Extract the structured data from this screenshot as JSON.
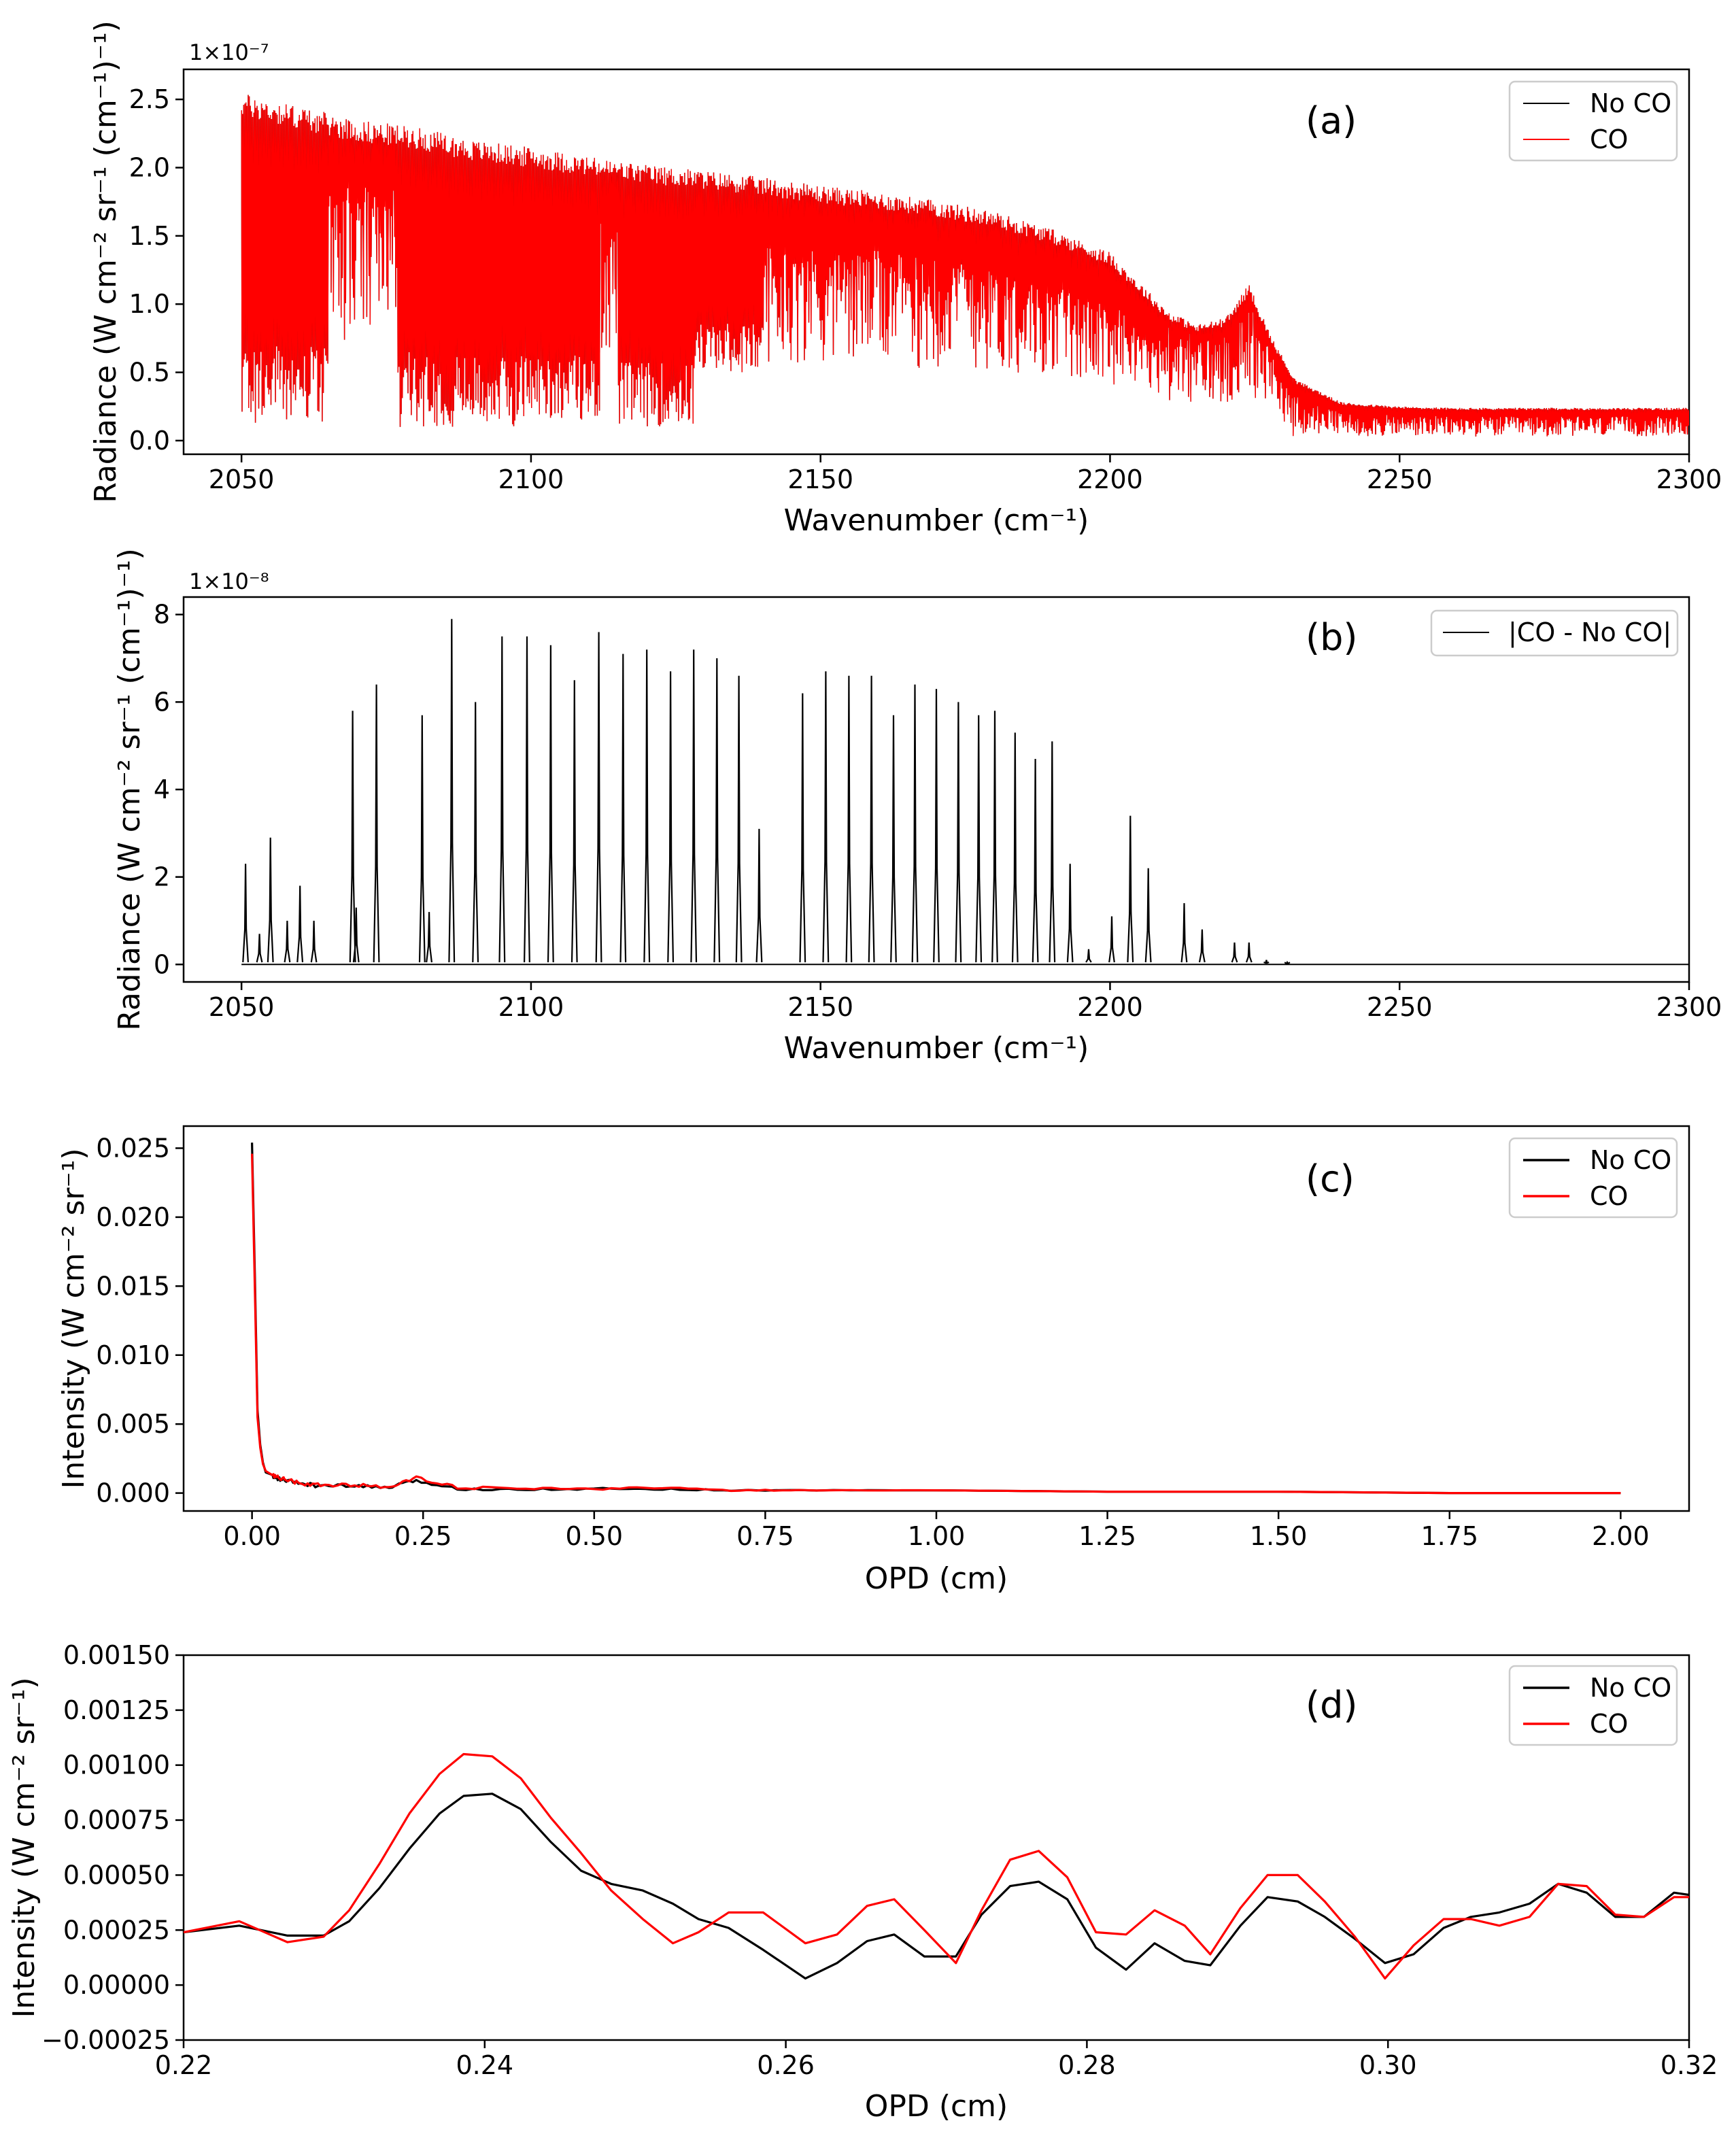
{
  "figure": {
    "panels": [
      "a",
      "b",
      "c",
      "d"
    ]
  },
  "chart_data": [
    {
      "id": "a",
      "type": "line",
      "panel_label": "(a)",
      "xlabel": "Wavenumber (cm⁻¹)",
      "ylabel": "Radiance (W cm⁻² sr⁻¹ (cm⁻¹)⁻¹)",
      "multiplier": "1×10⁻⁷",
      "xlim": [
        2040,
        2300
      ],
      "ylim": [
        -0.1,
        2.72
      ],
      "xticks": [
        2050,
        2100,
        2150,
        2200,
        2250,
        2300
      ],
      "xtick_labels": [
        "2050",
        "2100",
        "2150",
        "2200",
        "2250",
        "2300"
      ],
      "yticks": [
        0.0,
        0.5,
        1.0,
        1.5,
        2.0,
        2.5
      ],
      "ytick_labels": [
        "0.0",
        "0.5",
        "1.0",
        "1.5",
        "2.0",
        "2.5"
      ],
      "legend": [
        "No CO",
        "CO"
      ],
      "legend_position": "top-right",
      "series": [
        {
          "name": "No CO",
          "color": "#000000",
          "x_range": [
            2050,
            2300
          ],
          "envelope": {
            "x": [
              2050,
              2060,
              2070,
              2080,
              2090,
              2100,
              2110,
              2120,
              2130,
              2140,
              2150,
              2160,
              2170,
              2180,
              2190,
              2200,
              2210,
              2215,
              2220,
              2224,
              2228,
              2232,
              2240,
              2250,
              2260,
              2270,
              2280,
              2290,
              2300
            ],
            "y": [
              2.55,
              2.45,
              2.35,
              2.3,
              2.2,
              2.15,
              2.08,
              2.02,
              1.98,
              1.93,
              1.87,
              1.82,
              1.76,
              1.68,
              1.55,
              1.38,
              0.95,
              0.85,
              0.9,
              1.15,
              0.75,
              0.45,
              0.28,
              0.25,
              0.24,
              0.24,
              0.24,
              0.24,
              0.24
            ]
          },
          "baseline": 0.03
        },
        {
          "name": "CO",
          "color": "#ff0000",
          "x_range": [
            2050,
            2300
          ]
        }
      ],
      "absorption_bands": [
        {
          "x": [
            2050,
            2065
          ],
          "floor": 0.12
        },
        {
          "x": [
            2077,
            2098
          ],
          "floor": 0.1
        },
        {
          "x": [
            2098,
            2112
          ],
          "floor": 0.15
        },
        {
          "x": [
            2115,
            2128
          ],
          "floor": 0.1
        },
        {
          "x": [
            2128,
            2140
          ],
          "floor": 0.5
        }
      ]
    },
    {
      "id": "b",
      "type": "line",
      "panel_label": "(b)",
      "xlabel": "Wavenumber (cm⁻¹)",
      "ylabel": "Radiance (W cm⁻² sr⁻¹ (cm⁻¹)⁻¹)",
      "multiplier": "1×10⁻⁸",
      "xlim": [
        2040,
        2300
      ],
      "ylim": [
        -0.4,
        8.4
      ],
      "xticks": [
        2050,
        2100,
        2150,
        2200,
        2250,
        2300
      ],
      "xtick_labels": [
        "2050",
        "2100",
        "2150",
        "2200",
        "2250",
        "2300"
      ],
      "yticks": [
        0,
        2,
        4,
        6,
        8
      ],
      "ytick_labels": [
        "0",
        "2",
        "4",
        "6",
        "8"
      ],
      "legend": [
        "|CO - No CO|"
      ],
      "legend_position": "top-right",
      "series": [
        {
          "name": "|CO - No CO|",
          "color": "#000000",
          "peaks_x": [
            2050.7,
            2053.1,
            2055.0,
            2057.9,
            2060.1,
            2062.5,
            2069.2,
            2069.8,
            2073.3,
            2081.2,
            2082.4,
            2086.3,
            2090.4,
            2095.0,
            2099.3,
            2103.4,
            2107.5,
            2111.7,
            2115.9,
            2120.0,
            2124.1,
            2128.1,
            2132.1,
            2135.9,
            2139.4,
            2146.9,
            2150.9,
            2154.9,
            2158.8,
            2162.6,
            2166.3,
            2170.0,
            2173.8,
            2177.3,
            2180.1,
            2183.6,
            2187.1,
            2190.0,
            2193.1,
            2196.3,
            2200.3,
            2203.5,
            2206.6,
            2212.8,
            2215.9,
            2221.5,
            2224.0,
            2227.0,
            2230.6
          ],
          "peaks_y": [
            2.3,
            0.7,
            2.9,
            1.0,
            1.8,
            1.0,
            5.8,
            1.3,
            6.4,
            5.7,
            1.2,
            7.9,
            6.0,
            7.5,
            7.5,
            7.3,
            6.5,
            7.6,
            7.1,
            7.2,
            6.7,
            7.2,
            7.0,
            6.6,
            3.1,
            6.2,
            6.7,
            6.6,
            6.6,
            5.7,
            6.4,
            6.3,
            6.0,
            5.7,
            5.8,
            5.3,
            4.7,
            5.1,
            2.3,
            0.35,
            1.1,
            3.4,
            2.2,
            1.4,
            0.8,
            0.5,
            0.5,
            0.1,
            0.05
          ]
        }
      ]
    },
    {
      "id": "c",
      "type": "line",
      "panel_label": "(c)",
      "xlabel": "OPD (cm)",
      "ylabel": "Intensity (W cm⁻² sr⁻¹)",
      "xlim": [
        -0.1,
        2.1
      ],
      "ylim": [
        -0.0013,
        0.0266
      ],
      "xticks": [
        0.0,
        0.25,
        0.5,
        0.75,
        1.0,
        1.25,
        1.5,
        1.75,
        2.0
      ],
      "xtick_labels": [
        "0.00",
        "0.25",
        "0.50",
        "0.75",
        "1.00",
        "1.25",
        "1.50",
        "1.75",
        "2.00"
      ],
      "yticks": [
        0.0,
        0.005,
        0.01,
        0.015,
        0.02,
        0.025
      ],
      "ytick_labels": [
        "0.000",
        "0.005",
        "0.010",
        "0.015",
        "0.020",
        "0.025"
      ],
      "legend": [
        "No CO",
        "CO"
      ],
      "legend_position": "top-right",
      "series": [
        {
          "name": "No CO",
          "color": "#000000",
          "x": [
            0.0,
            0.004,
            0.008,
            0.012,
            0.016,
            0.02,
            0.03,
            0.04,
            0.05,
            0.07,
            0.1,
            0.15,
            0.2,
            0.24,
            0.3,
            0.4,
            0.5,
            0.6,
            0.7,
            0.8,
            1.0,
            1.25,
            1.5,
            1.75,
            2.0
          ],
          "y": [
            0.0254,
            0.016,
            0.006,
            0.0035,
            0.0022,
            0.0015,
            0.0012,
            0.001,
            0.0009,
            0.0007,
            0.0005,
            0.0005,
            0.0004,
            0.0009,
            0.0003,
            0.0003,
            0.0003,
            0.0003,
            0.0002,
            0.0002,
            0.0002,
            0.0001,
            0.0001,
            0.0,
            0.0
          ]
        },
        {
          "name": "CO",
          "color": "#ff0000",
          "x": [
            0.0,
            0.004,
            0.008,
            0.012,
            0.016,
            0.02,
            0.03,
            0.04,
            0.05,
            0.07,
            0.1,
            0.15,
            0.2,
            0.24,
            0.3,
            0.4,
            0.5,
            0.6,
            0.7,
            0.8,
            1.0,
            1.25,
            1.5,
            1.75,
            2.0
          ],
          "y": [
            0.0246,
            0.015,
            0.0055,
            0.0033,
            0.0021,
            0.0016,
            0.0013,
            0.0011,
            0.001,
            0.0007,
            0.0006,
            0.0006,
            0.0004,
            0.0011,
            0.0004,
            0.0003,
            0.0003,
            0.0004,
            0.0002,
            0.0002,
            0.0002,
            0.0001,
            0.0001,
            0.0,
            0.0
          ]
        }
      ]
    },
    {
      "id": "d",
      "type": "line",
      "panel_label": "(d)",
      "xlabel": "OPD (cm)",
      "ylabel": "Intensity (W cm⁻² sr⁻¹)",
      "xlim": [
        0.22,
        0.32
      ],
      "ylim": [
        -0.00025,
        0.0015
      ],
      "xticks": [
        0.22,
        0.24,
        0.26,
        0.28,
        0.3,
        0.32
      ],
      "xtick_labels": [
        "0.22",
        "0.24",
        "0.26",
        "0.28",
        "0.30",
        "0.32"
      ],
      "yticks": [
        -0.00025,
        0.0,
        0.00025,
        0.0005,
        0.00075,
        0.001,
        0.00125,
        0.0015
      ],
      "ytick_labels": [
        "−0.00025",
        "0.00000",
        "0.00025",
        "0.00050",
        "0.00075",
        "0.00100",
        "0.00125",
        "0.00150"
      ],
      "legend": [
        "No CO",
        "CO"
      ],
      "legend_position": "top-right",
      "series": [
        {
          "name": "No CO",
          "color": "#000000",
          "x": [
            0.22,
            0.2237,
            0.2269,
            0.2293,
            0.231,
            0.233,
            0.235,
            0.237,
            0.2386,
            0.2405,
            0.2424,
            0.2444,
            0.2464,
            0.2484,
            0.2505,
            0.2525,
            0.2542,
            0.2562,
            0.2585,
            0.2613,
            0.2634,
            0.2654,
            0.2672,
            0.2692,
            0.2713,
            0.273,
            0.2749,
            0.2768,
            0.2787,
            0.2806,
            0.2826,
            0.2845,
            0.2865,
            0.2882,
            0.2902,
            0.292,
            0.294,
            0.2958,
            0.2978,
            0.2998,
            0.3017,
            0.3037,
            0.3055,
            0.3074,
            0.3094,
            0.3113,
            0.3132,
            0.3151,
            0.317,
            0.319,
            0.32
          ],
          "y": [
            0.00024,
            0.00027,
            0.000225,
            0.000225,
            0.00029,
            0.00044,
            0.00062,
            0.00078,
            0.00086,
            0.00087,
            0.0008,
            0.00065,
            0.00052,
            0.00046,
            0.00043,
            0.00037,
            0.0003,
            0.00026,
            0.00016,
            3e-05,
            0.0001,
            0.0002,
            0.00023,
            0.00013,
            0.00013,
            0.00032,
            0.00045,
            0.00047,
            0.00039,
            0.00017,
            7e-05,
            0.00019,
            0.00011,
            9e-05,
            0.00027,
            0.0004,
            0.00038,
            0.00031,
            0.00021,
            0.0001,
            0.00014,
            0.00026,
            0.00031,
            0.00033,
            0.00037,
            0.00046,
            0.00042,
            0.00031,
            0.00031,
            0.00042,
            0.00041
          ]
        },
        {
          "name": "CO",
          "color": "#ff0000",
          "x": [
            0.22,
            0.2237,
            0.2269,
            0.2293,
            0.231,
            0.233,
            0.235,
            0.237,
            0.2386,
            0.2405,
            0.2424,
            0.2444,
            0.2464,
            0.2484,
            0.2505,
            0.2525,
            0.2542,
            0.2562,
            0.2585,
            0.2613,
            0.2634,
            0.2654,
            0.2672,
            0.2692,
            0.2713,
            0.273,
            0.2749,
            0.2768,
            0.2787,
            0.2806,
            0.2826,
            0.2845,
            0.2865,
            0.2882,
            0.2902,
            0.292,
            0.294,
            0.2958,
            0.2978,
            0.2998,
            0.3017,
            0.3037,
            0.3055,
            0.3074,
            0.3094,
            0.3113,
            0.3132,
            0.3151,
            0.317,
            0.319,
            0.32
          ],
          "y": [
            0.00024,
            0.00029,
            0.000195,
            0.00022,
            0.00034,
            0.00055,
            0.00078,
            0.00096,
            0.00105,
            0.00104,
            0.00094,
            0.00076,
            0.0006,
            0.00043,
            0.0003,
            0.00019,
            0.00024,
            0.00033,
            0.00033,
            0.00019,
            0.00023,
            0.00036,
            0.00039,
            0.00025,
            0.0001,
            0.00034,
            0.00057,
            0.00061,
            0.00049,
            0.00024,
            0.00023,
            0.00034,
            0.00027,
            0.00014,
            0.00035,
            0.0005,
            0.0005,
            0.00038,
            0.00022,
            3e-05,
            0.00018,
            0.0003,
            0.0003,
            0.00027,
            0.00031,
            0.00046,
            0.00045,
            0.00032,
            0.00031,
            0.0004,
            0.0004
          ]
        }
      ]
    }
  ]
}
